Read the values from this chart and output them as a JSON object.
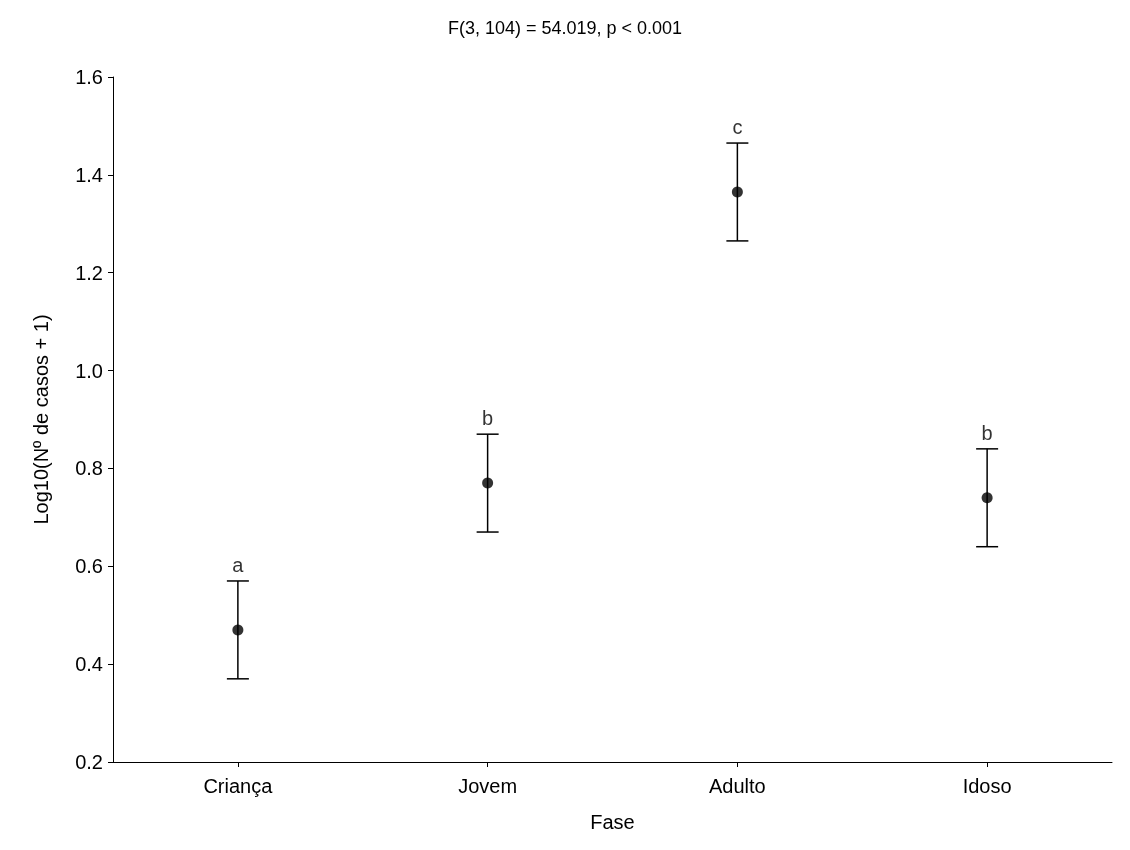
{
  "chart_data": {
    "type": "scatter",
    "title": "F(3, 104) = 54.019, p < 0.001",
    "xlabel": "Fase",
    "ylabel": "Log10(Nº de casos + 1)",
    "categories": [
      "Criança",
      "Jovem",
      "Adulto",
      "Idoso"
    ],
    "values": [
      0.47,
      0.77,
      1.365,
      0.74
    ],
    "errors": [
      0.1,
      0.1,
      0.1,
      0.1
    ],
    "color": "#000000",
    "marker": "circle",
    "ylim": [
      0.2,
      1.6
    ],
    "yticks": [
      0.2,
      0.4,
      0.6,
      0.8,
      {
        "value": 1.0,
        "label": "1.0"
      },
      1.2,
      1.4,
      1.6
    ],
    "annotations": [
      {
        "text": "a",
        "x": "Criança",
        "y": 0.57
      },
      {
        "text": "b",
        "x": "Jovem",
        "y": 0.87
      },
      {
        "text": "c",
        "x": "Adulto",
        "y": 1.465
      },
      {
        "text": "b",
        "x": "Idoso",
        "y": 0.84
      }
    ]
  }
}
